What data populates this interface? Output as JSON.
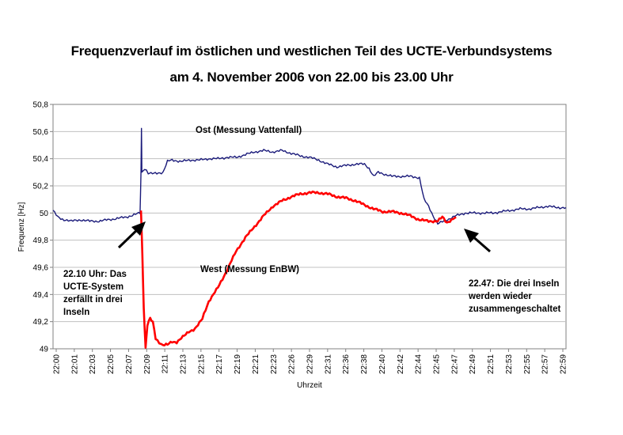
{
  "title_line1": "Frequenzverlauf im östlichen und westlichen Teil des UCTE-Verbundsystems",
  "title_line2": "am 4. November 2006 von 22.00 bis 23.00 Uhr",
  "chart_data": {
    "type": "line",
    "xlabel": "Uhrzeit",
    "ylabel": "Frequenz [Hz]",
    "ylim": [
      49,
      50.8
    ],
    "y_ticks": [
      "49",
      "49,2",
      "49,4",
      "49,6",
      "49,8",
      "50",
      "50,2",
      "50,4",
      "50,6",
      "50,8"
    ],
    "x_ticks": [
      "22:00",
      "22:01",
      "22:03",
      "22:05",
      "22:07",
      "22:09",
      "22:11",
      "22:13",
      "22:15",
      "22:17",
      "22:19",
      "22:21",
      "22:23",
      "22:26",
      "22:29",
      "22:31",
      "22:36",
      "22:38",
      "22:40",
      "22:42",
      "22:44",
      "22:45",
      "22:47",
      "22:49",
      "22:51",
      "22:53",
      "22:55",
      "22:57",
      "22:59"
    ],
    "grid": true,
    "series": [
      {
        "name": "Ost (Messung Vattenfall)",
        "color": "#1a1a7a",
        "points": [
          [
            0,
            50.02
          ],
          [
            0.5,
            49.97
          ],
          [
            1.2,
            49.95
          ],
          [
            2,
            49.94
          ],
          [
            3,
            49.95
          ],
          [
            4,
            49.94
          ],
          [
            5,
            49.94
          ],
          [
            6,
            49.95
          ],
          [
            7,
            49.96
          ],
          [
            8,
            49.97
          ],
          [
            9,
            49.99
          ],
          [
            9.5,
            50.0
          ],
          [
            9.6,
            50.3
          ],
          [
            9.65,
            50.62
          ],
          [
            9.7,
            50.3
          ],
          [
            10,
            50.33
          ],
          [
            10.4,
            50.29
          ],
          [
            11,
            50.29
          ],
          [
            12,
            50.3
          ],
          [
            12.5,
            50.38
          ],
          [
            13,
            50.39
          ],
          [
            14,
            50.38
          ],
          [
            15,
            50.39
          ],
          [
            16,
            50.39
          ],
          [
            17,
            50.4
          ],
          [
            18,
            50.4
          ],
          [
            19,
            50.41
          ],
          [
            20,
            50.41
          ],
          [
            21,
            50.43
          ],
          [
            22,
            50.45
          ],
          [
            23,
            50.46
          ],
          [
            24,
            50.45
          ],
          [
            25,
            50.46
          ],
          [
            26,
            50.44
          ],
          [
            27,
            50.42
          ],
          [
            28,
            50.41
          ],
          [
            29,
            50.39
          ],
          [
            30,
            50.36
          ],
          [
            31,
            50.34
          ],
          [
            32,
            50.35
          ],
          [
            33,
            50.36
          ],
          [
            34,
            50.36
          ],
          [
            34.5,
            50.33
          ],
          [
            35,
            50.27
          ],
          [
            35.5,
            50.3
          ],
          [
            36,
            50.29
          ],
          [
            37,
            50.27
          ],
          [
            38,
            50.27
          ],
          [
            39,
            50.27
          ],
          [
            40,
            50.26
          ],
          [
            40.5,
            50.1
          ],
          [
            41,
            50.05
          ],
          [
            41.5,
            49.98
          ],
          [
            42,
            49.92
          ],
          [
            43,
            49.95
          ],
          [
            44,
            49.98
          ],
          [
            45,
            50.0
          ],
          [
            46,
            50.0
          ],
          [
            47,
            50.0
          ],
          [
            48,
            50.0
          ],
          [
            49,
            50.01
          ],
          [
            50,
            50.02
          ],
          [
            51,
            50.03
          ],
          [
            52,
            50.03
          ],
          [
            53,
            50.04
          ],
          [
            54,
            50.05
          ],
          [
            55,
            50.04
          ],
          [
            56,
            50.04
          ]
        ]
      },
      {
        "name": "West (Messung EnBW)",
        "color": "#ff0000",
        "points": [
          [
            9.6,
            50.01
          ],
          [
            9.75,
            49.7
          ],
          [
            9.9,
            49.3
          ],
          [
            10.1,
            49.0
          ],
          [
            10.3,
            49.18
          ],
          [
            10.6,
            49.23
          ],
          [
            10.9,
            49.2
          ],
          [
            11.2,
            49.08
          ],
          [
            11.6,
            49.04
          ],
          [
            12,
            49.03
          ],
          [
            12.5,
            49.03
          ],
          [
            13,
            49.05
          ],
          [
            13.5,
            49.05
          ],
          [
            14,
            49.08
          ],
          [
            14.8,
            49.12
          ],
          [
            15.5,
            49.15
          ],
          [
            16.3,
            49.22
          ],
          [
            17,
            49.35
          ],
          [
            18,
            49.45
          ],
          [
            19,
            49.58
          ],
          [
            20,
            49.72
          ],
          [
            21,
            49.82
          ],
          [
            22,
            49.9
          ],
          [
            23,
            49.98
          ],
          [
            24,
            50.05
          ],
          [
            25,
            50.09
          ],
          [
            26,
            50.12
          ],
          [
            27,
            50.14
          ],
          [
            28,
            50.15
          ],
          [
            29,
            50.15
          ],
          [
            30,
            50.14
          ],
          [
            31,
            50.12
          ],
          [
            32,
            50.11
          ],
          [
            33,
            50.09
          ],
          [
            34,
            50.06
          ],
          [
            35,
            50.03
          ],
          [
            36,
            50.01
          ],
          [
            37,
            50.01
          ],
          [
            38,
            50.0
          ],
          [
            39,
            49.98
          ],
          [
            40,
            49.95
          ],
          [
            41,
            49.94
          ],
          [
            42,
            49.94
          ],
          [
            42.5,
            49.97
          ],
          [
            43,
            49.93
          ],
          [
            43.5,
            49.95
          ],
          [
            44,
            49.97
          ]
        ]
      }
    ],
    "annotations": [
      {
        "lines": [
          "Ost (Messung Vattenfall)"
        ]
      },
      {
        "lines": [
          "West (Messung EnBW)"
        ]
      },
      {
        "lines": [
          "22.10 Uhr: Das",
          "UCTE-System",
          "zerfällt in drei",
          "Inseln"
        ]
      },
      {
        "lines": [
          "22.47: Die drei Inseln",
          "werden wieder",
          "zusammengeschaltet"
        ]
      }
    ],
    "x_index_max": 56
  }
}
